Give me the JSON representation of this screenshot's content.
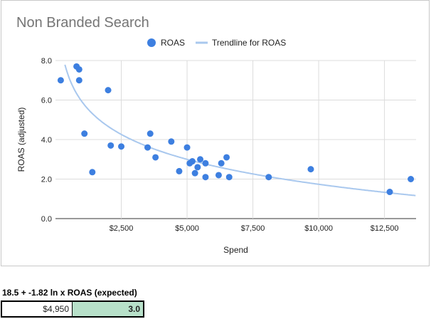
{
  "chart_data": {
    "type": "scatter",
    "title": "Non Branded Search",
    "xlabel": "Spend",
    "ylabel": "ROAS  (adjusted)",
    "xlim": [
      0,
      13700
    ],
    "ylim": [
      0,
      8
    ],
    "x_ticks": [
      2500,
      5000,
      7500,
      10000,
      12500
    ],
    "x_tick_labels": [
      "$2,500",
      "$5,000",
      "$7,500",
      "$10,000",
      "$12,500"
    ],
    "y_ticks": [
      0,
      2,
      4,
      6,
      8
    ],
    "y_tick_labels": [
      "0.0",
      "2.0",
      "4.0",
      "6.0",
      "8.0"
    ],
    "grid": true,
    "legend_position": "top",
    "legend": [
      {
        "label": "ROAS",
        "marker": "dot",
        "color": "#3d7fe0"
      },
      {
        "label": "Trendline for ROAS",
        "marker": "line",
        "color": "#a9c8ee"
      }
    ],
    "series": [
      {
        "name": "ROAS",
        "color": "#3d7fe0",
        "points": [
          [
            200,
            7.0
          ],
          [
            800,
            7.7
          ],
          [
            900,
            7.55
          ],
          [
            900,
            7.0
          ],
          [
            1100,
            4.3
          ],
          [
            1400,
            2.35
          ],
          [
            2000,
            6.5
          ],
          [
            2100,
            3.7
          ],
          [
            2500,
            3.65
          ],
          [
            3500,
            3.6
          ],
          [
            3600,
            4.3
          ],
          [
            3800,
            3.1
          ],
          [
            4400,
            3.9
          ],
          [
            4700,
            2.4
          ],
          [
            5000,
            3.6
          ],
          [
            5100,
            2.8
          ],
          [
            5200,
            2.9
          ],
          [
            5300,
            2.3
          ],
          [
            5400,
            2.6
          ],
          [
            5500,
            3.0
          ],
          [
            5700,
            2.8
          ],
          [
            5700,
            2.1
          ],
          [
            6200,
            2.2
          ],
          [
            6300,
            2.8
          ],
          [
            6500,
            3.1
          ],
          [
            6600,
            2.1
          ],
          [
            8100,
            2.1
          ],
          [
            9700,
            2.5
          ],
          [
            12700,
            1.35
          ],
          [
            13500,
            2.0
          ]
        ]
      }
    ],
    "trendline": {
      "name": "Trendline for ROAS",
      "type": "logarithmic",
      "intercept": 18.5,
      "slope": -1.82,
      "color": "#a9c8ee"
    }
  },
  "calculator": {
    "formula_label": "18.5 + -1.82 ln x ROAS (expected)",
    "spend_value": "$4,950",
    "roas_value": "3.0"
  }
}
